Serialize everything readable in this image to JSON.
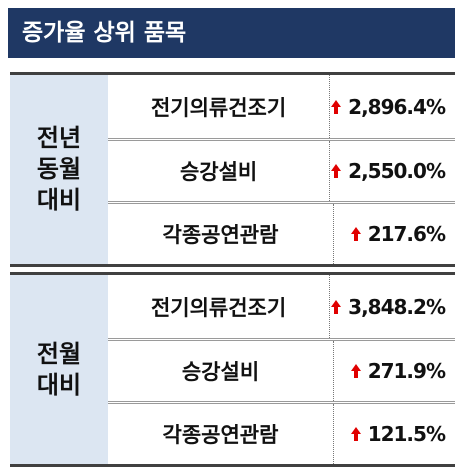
{
  "header": {
    "title": "증가율 상위 품목"
  },
  "groups": [
    {
      "label_lines": [
        "전년",
        "동월",
        "대비"
      ],
      "rows": [
        {
          "item": "전기의류건조기",
          "value": "2,896.4%"
        },
        {
          "item": "승강설비",
          "value": "2,550.0%"
        },
        {
          "item": "각종공연관람",
          "value": "217.6%"
        }
      ]
    },
    {
      "label_lines": [
        "전월",
        "대비"
      ],
      "rows": [
        {
          "item": "전기의류건조기",
          "value": "3,848.2%"
        },
        {
          "item": "승강설비",
          "value": "271.9%"
        },
        {
          "item": "각종공연관람",
          "value": "121.5%"
        }
      ]
    }
  ]
}
